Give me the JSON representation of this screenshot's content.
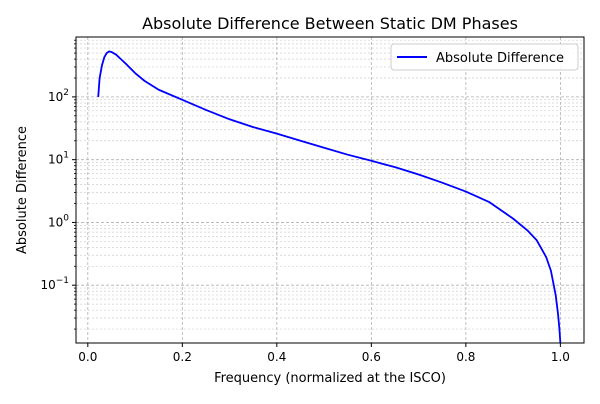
{
  "chart_data": {
    "type": "line",
    "title": "Absolute Difference Between Static DM Phases",
    "xlabel": "Frequency (normalized at the ISCO)",
    "ylabel": "Absolute Difference",
    "xlim": [
      -0.025,
      1.05
    ],
    "ylim": [
      0.012,
      900
    ],
    "yscale": "log",
    "grid": "both (major and minor), dashed",
    "legend_position": "top-right",
    "x_ticks": [
      {
        "value": 0.0,
        "label": "0.0"
      },
      {
        "value": 0.2,
        "label": "0.2"
      },
      {
        "value": 0.4,
        "label": "0.4"
      },
      {
        "value": 0.6,
        "label": "0.6"
      },
      {
        "value": 0.8,
        "label": "0.8"
      },
      {
        "value": 1.0,
        "label": "1.0"
      }
    ],
    "y_ticks": [
      {
        "value": 0.1,
        "base": "10",
        "exp": "−1"
      },
      {
        "value": 1,
        "base": "10",
        "exp": "0"
      },
      {
        "value": 10,
        "base": "10",
        "exp": "1"
      },
      {
        "value": 100,
        "base": "10",
        "exp": "2"
      }
    ],
    "series": [
      {
        "name": "Absolute Difference",
        "color": "#0000ff",
        "x": [
          0.022,
          0.025,
          0.03,
          0.035,
          0.04,
          0.045,
          0.05,
          0.06,
          0.07,
          0.08,
          0.1,
          0.12,
          0.15,
          0.2,
          0.25,
          0.3,
          0.35,
          0.4,
          0.45,
          0.5,
          0.55,
          0.6,
          0.65,
          0.7,
          0.75,
          0.8,
          0.85,
          0.9,
          0.93,
          0.95,
          0.97,
          0.98,
          0.99,
          0.995,
          0.998,
          1.0
        ],
        "y": [
          100,
          200,
          320,
          430,
          500,
          530,
          520,
          470,
          400,
          340,
          240,
          180,
          130,
          90,
          62,
          44,
          33,
          26,
          20,
          15.5,
          12,
          9.6,
          7.6,
          5.8,
          4.3,
          3.1,
          2.1,
          1.15,
          0.75,
          0.52,
          0.28,
          0.17,
          0.07,
          0.035,
          0.02,
          0.012
        ]
      }
    ]
  }
}
